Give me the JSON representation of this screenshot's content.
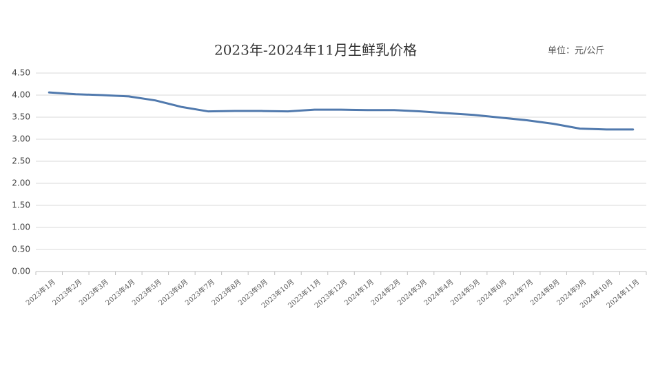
{
  "chart_data": {
    "type": "line",
    "title": "2023年-2024年11月生鲜乳价格",
    "unit": "单位：元/公斤",
    "categories": [
      "2023年1月",
      "2023年2月",
      "2023年3月",
      "2023年4月",
      "2023年5月",
      "2023年6月",
      "2023年7月",
      "2023年8月",
      "2023年9月",
      "2023年10月",
      "2023年11月",
      "2023年12月",
      "2024年1月",
      "2024年2月",
      "2024年3月",
      "2024年4月",
      "2024年5月",
      "2024年6月",
      "2024年7月",
      "2024年8月",
      "2024年9月",
      "2024年10月",
      "2024年11月"
    ],
    "series": [
      {
        "color": "#5079ad",
        "values": [
          4.06,
          4.02,
          4.0,
          3.97,
          3.88,
          3.73,
          3.63,
          3.64,
          3.64,
          3.63,
          3.67,
          3.67,
          3.66,
          3.66,
          3.63,
          3.59,
          3.55,
          3.49,
          3.43,
          3.35,
          3.24,
          3.22,
          3.22
        ]
      }
    ],
    "ylim": [
      0,
      4.5
    ],
    "yticks": [
      {
        "value": 0,
        "label": "0.00"
      },
      {
        "value": 0.5,
        "label": "0.50"
      },
      {
        "value": 1,
        "label": "1.00"
      },
      {
        "value": 1.5,
        "label": "1.50"
      },
      {
        "value": 2,
        "label": "2.00"
      },
      {
        "value": 2.5,
        "label": "2.50"
      },
      {
        "value": 3,
        "label": "3.00"
      },
      {
        "value": 3.5,
        "label": "3.50"
      },
      {
        "value": 4,
        "label": "4.00"
      },
      {
        "value": 4.5,
        "label": "4.50"
      }
    ],
    "grid": true
  }
}
